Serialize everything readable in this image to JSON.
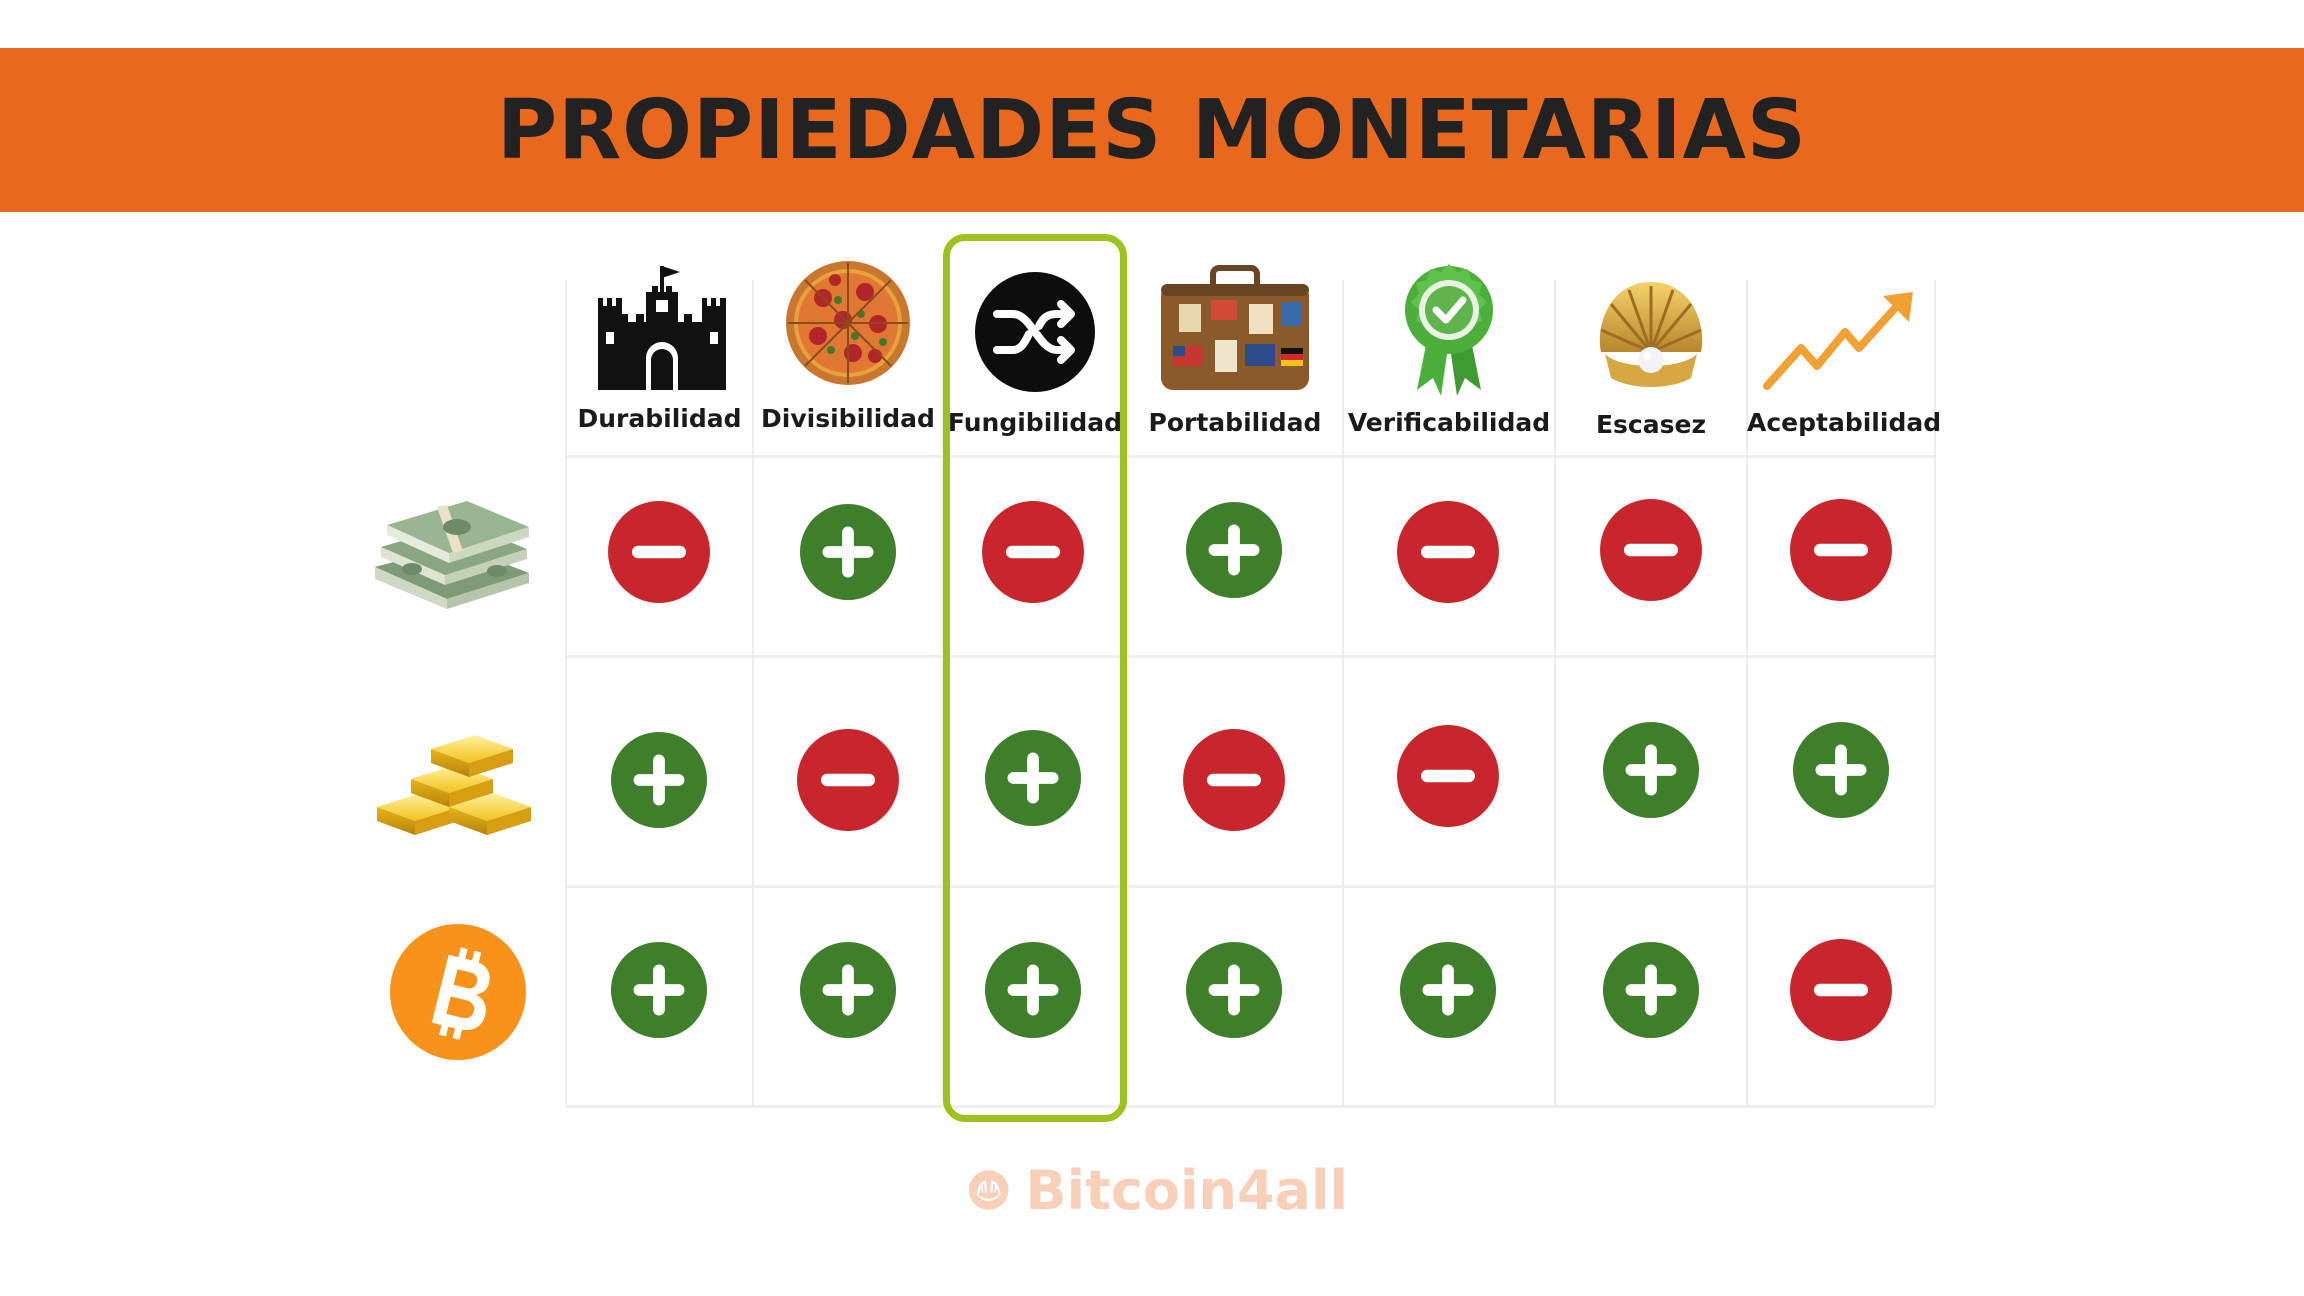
{
  "title": "PROPIEDADES MONETARIAS",
  "columns": [
    {
      "label": "Durabilidad",
      "icon": "castle-icon"
    },
    {
      "label": "Divisibilidad",
      "icon": "pizza-icon"
    },
    {
      "label": "Fungibilidad",
      "icon": "shuffle-icon"
    },
    {
      "label": "Portabilidad",
      "icon": "suitcase-icon"
    },
    {
      "label": "Verificabilidad",
      "icon": "award-ribbon-icon"
    },
    {
      "label": "Escasez",
      "icon": "pearl-shell-icon"
    },
    {
      "label": "Aceptabilidad",
      "icon": "trend-up-arrow-icon"
    }
  ],
  "rows": [
    {
      "icon": "banknotes-icon",
      "values": [
        "minus",
        "plus",
        "minus",
        "plus",
        "minus",
        "minus",
        "minus"
      ]
    },
    {
      "icon": "gold-bars-icon",
      "values": [
        "plus",
        "minus",
        "plus",
        "minus",
        "minus",
        "plus",
        "plus"
      ]
    },
    {
      "icon": "bitcoin-icon",
      "values": [
        "plus",
        "plus",
        "plus",
        "plus",
        "plus",
        "plus",
        "minus"
      ]
    }
  ],
  "highlighted_column": "Fungibilidad",
  "watermark": "Bitcoin4all",
  "colors": {
    "band": "#e8681e",
    "plus": "#3f7f2c",
    "minus": "#c8262c",
    "highlight": "#9cc31d",
    "bitcoin": "#f7931a"
  }
}
